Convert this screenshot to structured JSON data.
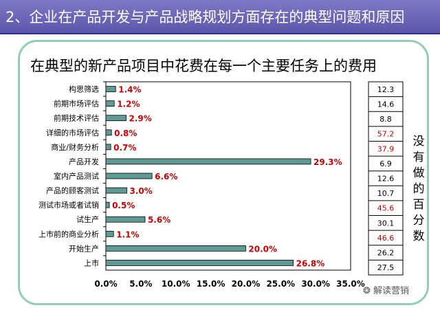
{
  "slide": {
    "header": "2、企业在产品开发与产品战略规划方面存在的典型问题和原因",
    "note_vertical": [
      "没",
      "有",
      "做",
      "的",
      "百",
      "分",
      "数"
    ],
    "watermark": "解读营销"
  },
  "chart_data": {
    "type": "bar",
    "orientation": "horizontal",
    "title": "在典型的新产品项目中花费在每一个主要任务上的费用",
    "categories": [
      "构思筛选",
      "前期市场评估",
      "前期技术评估",
      "详细的市场评估",
      "商业/财务分析",
      "产品开发",
      "室内产品测试",
      "产品的顾客测试",
      "测试市场或者试销",
      "试生产",
      "上市前的商业分析",
      "开始生产",
      "上市"
    ],
    "values": [
      1.4,
      1.2,
      2.9,
      0.8,
      0.7,
      29.3,
      6.6,
      3.0,
      0.5,
      5.6,
      1.1,
      20.0,
      26.8
    ],
    "data_labels": [
      "1.4%",
      "1.2%",
      "2.9%",
      "0.8%",
      "0.7%",
      "29.3%",
      "6.6%",
      "3.0%",
      "0.5%",
      "5.6%",
      "1.1%",
      "20.0%",
      "26.8%"
    ],
    "xlim": [
      0,
      35
    ],
    "xticks": [
      "0.0%",
      "5.0%",
      "10.0%",
      "15.0%",
      "20.0%",
      "25.0%",
      "30.0%",
      "35.0%"
    ],
    "bar_color": "#5f9a94",
    "label_color": "#cc0000",
    "side_table": {
      "values": [
        "12.3",
        "14.6",
        "8.8",
        "57.2",
        "37.9",
        "6.9",
        "12.6",
        "10.7",
        "45.6",
        "30.1",
        "46.6",
        "26.2",
        "27.5"
      ],
      "highlight": [
        false,
        false,
        false,
        true,
        true,
        false,
        false,
        false,
        true,
        false,
        true,
        false,
        false
      ],
      "highlight_color": "#cc0000"
    }
  }
}
